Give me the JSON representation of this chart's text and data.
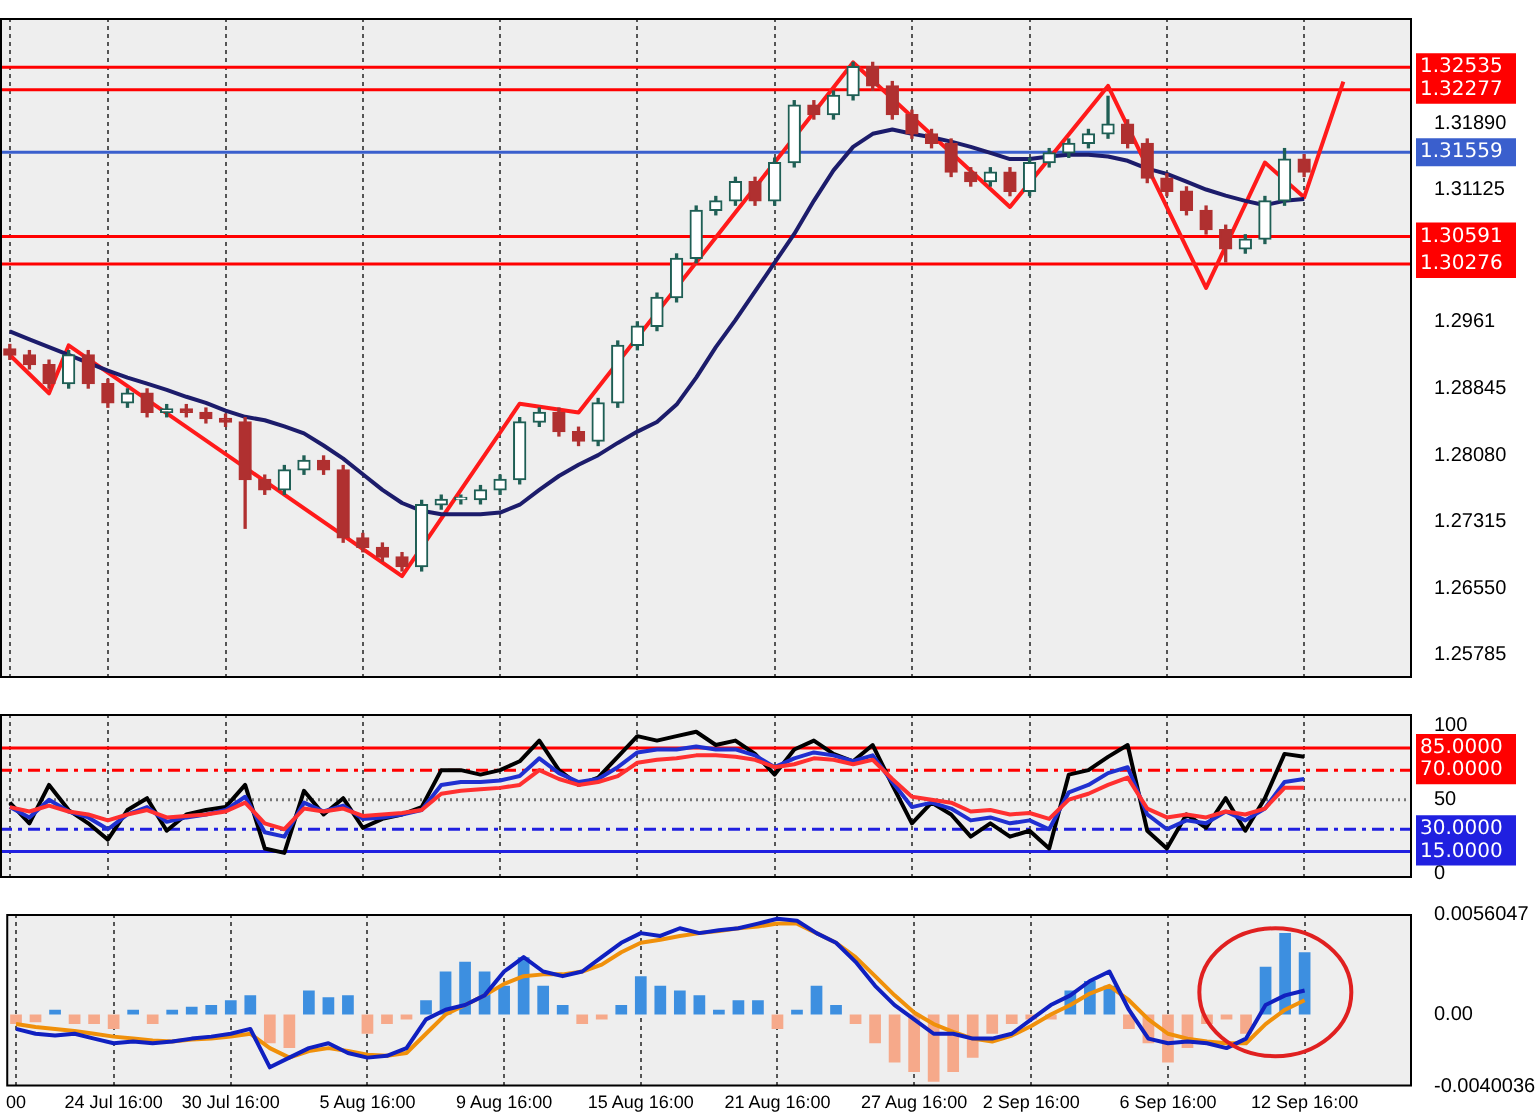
{
  "chart_data": [
    {
      "type": "candlestick",
      "categories": [
        null,
        null,
        null,
        null,
        null,
        null,
        null,
        null,
        null,
        null,
        null,
        null,
        null,
        null,
        null,
        null,
        null,
        null,
        null,
        null,
        null,
        null,
        null,
        null,
        null,
        null,
        null,
        null,
        null,
        null,
        null,
        null,
        null,
        null,
        null,
        null,
        null,
        null,
        null,
        null,
        null,
        null,
        null,
        null,
        null,
        null,
        null,
        null,
        null,
        null,
        null,
        null,
        null,
        null,
        null,
        null,
        null,
        null,
        null,
        null,
        null,
        null,
        null,
        null,
        null,
        null,
        null,
        null,
        null,
        null,
        null,
        null
      ],
      "colors": [
        "#b03030",
        "#b03030",
        "#b03030",
        "#1f5f55",
        "#b03030",
        "#b03030",
        "#1f5f55",
        "#b03030",
        "#1f5f55",
        "#b03030",
        "#b03030",
        "#b03030",
        "#b03030",
        "#b03030",
        "#1f5f55",
        "#1f5f55",
        "#b03030",
        "#b03030",
        "#b03030",
        "#b03030",
        "#b03030",
        "#1f5f55",
        "#1f5f55",
        "#1f5f55",
        "#1f5f55",
        "#1f5f55",
        "#1f5f55",
        "#1f5f55",
        "#b03030",
        "#b03030",
        "#1f5f55",
        "#1f5f55",
        "#1f5f55",
        "#1f5f55",
        "#1f5f55",
        "#1f5f55",
        "#1f5f55",
        "#1f5f55",
        "#b03030",
        "#1f5f55",
        "#1f5f55",
        "#b03030",
        "#1f5f55",
        "#1f5f55",
        "#b03030",
        "#b03030",
        "#b03030",
        "#b03030",
        "#b03030",
        "#b03030",
        "#1f5f55",
        "#b03030",
        "#1f5f55",
        "#1f5f55",
        "#1f5f55",
        "#1f5f55",
        "#1f5f55",
        "#b03030",
        "#b03030",
        "#b03030",
        "#b03030",
        "#b03030",
        "#b03030",
        "#1f5f55",
        "#1f5f55",
        "#1f5f55",
        "#b03030",
        null,
        null,
        null,
        null,
        null
      ],
      "ohlc": [
        [
          1.293,
          1.2935,
          1.2918,
          1.2923
        ],
        [
          1.2923,
          1.2928,
          1.2907,
          1.2912
        ],
        [
          1.2912,
          1.2917,
          1.2885,
          1.289
        ],
        [
          1.289,
          1.2928,
          1.2885,
          1.2923
        ],
        [
          1.2923,
          1.2928,
          1.2885,
          1.289
        ],
        [
          1.289,
          1.2895,
          1.2863,
          1.2868
        ],
        [
          1.2868,
          1.2884,
          1.2863,
          1.2879
        ],
        [
          1.2879,
          1.2884,
          1.2852,
          1.2857
        ],
        [
          1.2857,
          1.2866,
          1.2852,
          1.2861
        ],
        [
          1.2861,
          1.2866,
          1.2852,
          1.2857
        ],
        [
          1.2857,
          1.2862,
          1.2845,
          1.285
        ],
        [
          1.285,
          1.2855,
          1.2841,
          1.2846
        ],
        [
          1.2846,
          1.2851,
          1.2724,
          1.278
        ],
        [
          1.278,
          1.2785,
          1.2763,
          1.2768
        ],
        [
          1.2768,
          1.2796,
          1.2763,
          1.2791
        ],
        [
          1.2791,
          1.2807,
          1.2786,
          1.2802
        ],
        [
          1.2802,
          1.2807,
          1.2786,
          1.2791
        ],
        [
          1.2791,
          1.2796,
          1.2708,
          1.2713
        ],
        [
          1.2713,
          1.2718,
          1.2697,
          1.2702
        ],
        [
          1.2702,
          1.2707,
          1.2686,
          1.2691
        ],
        [
          1.2691,
          1.2696,
          1.2675,
          1.268
        ],
        [
          1.268,
          1.2756,
          1.2675,
          1.2751
        ],
        [
          1.2751,
          1.2762,
          1.2746,
          1.2757
        ],
        [
          1.2757,
          1.2762,
          1.2752,
          1.2757
        ],
        [
          1.2757,
          1.2773,
          1.2752,
          1.2768
        ],
        [
          1.2768,
          1.2785,
          1.2763,
          1.278
        ],
        [
          1.278,
          1.2851,
          1.2775,
          1.2846
        ],
        [
          1.2846,
          1.2862,
          1.2841,
          1.2857
        ],
        [
          1.2857,
          1.2862,
          1.283,
          1.2835
        ],
        [
          1.2835,
          1.284,
          1.2819,
          1.2824
        ],
        [
          1.2824,
          1.2873,
          1.2819,
          1.2868
        ],
        [
          1.2868,
          1.2939,
          1.2863,
          1.2934
        ],
        [
          1.2934,
          1.2961,
          1.2929,
          1.2956
        ],
        [
          1.2956,
          1.2994,
          1.2951,
          1.2989
        ],
        [
          1.2989,
          1.3039,
          1.2984,
          1.3034
        ],
        [
          1.3034,
          1.3094,
          1.3029,
          1.3089
        ],
        [
          1.3089,
          1.3105,
          1.3084,
          1.31
        ],
        [
          1.31,
          1.3127,
          1.3095,
          1.3122
        ],
        [
          1.3122,
          1.3127,
          1.3095,
          1.31
        ],
        [
          1.31,
          1.3149,
          1.3095,
          1.3144
        ],
        [
          1.3144,
          1.3215,
          1.3139,
          1.321
        ],
        [
          1.321,
          1.3215,
          1.3194,
          1.3199
        ],
        [
          1.3199,
          1.3226,
          1.3194,
          1.3221
        ],
        [
          1.3221,
          1.3259,
          1.3216,
          1.3254
        ],
        [
          1.3254,
          1.3259,
          1.3227,
          1.3232
        ],
        [
          1.3232,
          1.3237,
          1.3194,
          1.3199
        ],
        [
          1.3199,
          1.3204,
          1.3172,
          1.3177
        ],
        [
          1.3177,
          1.3182,
          1.3161,
          1.3166
        ],
        [
          1.3166,
          1.3171,
          1.3128,
          1.3133
        ],
        [
          1.3133,
          1.3138,
          1.3117,
          1.3122
        ],
        [
          1.3122,
          1.3138,
          1.3117,
          1.3133
        ],
        [
          1.3133,
          1.3138,
          1.3106,
          1.3111
        ],
        [
          1.3111,
          1.3149,
          1.3106,
          1.3144
        ],
        [
          1.3144,
          1.316,
          1.3139,
          1.3155
        ],
        [
          1.3155,
          1.3171,
          1.315,
          1.3166
        ],
        [
          1.3166,
          1.3182,
          1.3161,
          1.3177
        ],
        [
          1.3177,
          1.322,
          1.3172,
          1.3188
        ],
        [
          1.3188,
          1.3193,
          1.3161,
          1.3166
        ],
        [
          1.3166,
          1.3171,
          1.3121,
          1.3126
        ],
        [
          1.3126,
          1.3131,
          1.3106,
          1.3111
        ],
        [
          1.3111,
          1.3116,
          1.3084,
          1.3089
        ],
        [
          1.3089,
          1.3094,
          1.3062,
          1.3067
        ],
        [
          1.3067,
          1.3072,
          1.303,
          1.3045
        ],
        [
          1.3045,
          1.3061,
          1.304,
          1.3056
        ],
        [
          1.3056,
          1.3105,
          1.3051,
          1.31
        ],
        [
          1.31,
          1.316,
          1.3095,
          1.3148
        ],
        [
          1.3148,
          1.3153,
          1.3128,
          1.3133
        ],
        null,
        null,
        null,
        null,
        null
      ],
      "series": [
        {
          "type": "line",
          "color": "#1c1c6b",
          "values": [
            1.295,
            1.2941,
            1.2932,
            1.2923,
            1.2914,
            1.2905,
            1.2897,
            1.289,
            1.2883,
            1.2875,
            1.2868,
            1.2859,
            1.2852,
            1.2848,
            1.2841,
            1.2833,
            1.2819,
            1.2804,
            1.2786,
            1.2768,
            1.2753,
            1.2744,
            1.274,
            1.274,
            1.274,
            1.2742,
            1.2751,
            1.2768,
            1.2784,
            1.2797,
            1.2808,
            1.2822,
            1.2835,
            1.2846,
            1.2866,
            1.2897,
            1.2932,
            1.2963,
            1.2996,
            1.3029,
            1.3062,
            1.31,
            1.3135,
            1.3162,
            1.3177,
            1.3182,
            1.3177,
            1.3173,
            1.3168,
            1.3162,
            1.3155,
            1.3148,
            1.3148,
            1.3151,
            1.3153,
            1.3153,
            1.3151,
            1.3146,
            1.3137,
            1.3131,
            1.3122,
            1.3113,
            1.3106,
            1.31,
            1.3095,
            1.31,
            1.3102,
            null,
            null,
            null,
            null,
            null
          ]
        },
        {
          "type": "line",
          "color": "#ff1a1a",
          "values": [
            1.2923,
            null,
            1.2879,
            1.2934,
            null,
            null,
            null,
            null,
            null,
            null,
            null,
            null,
            null,
            null,
            null,
            null,
            null,
            null,
            null,
            null,
            1.2669,
            null,
            null,
            null,
            null,
            null,
            1.2867,
            null,
            null,
            1.2857,
            null,
            null,
            null,
            null,
            null,
            null,
            null,
            null,
            null,
            null,
            null,
            null,
            null,
            1.3259,
            null,
            null,
            null,
            null,
            null,
            null,
            null,
            1.3093,
            null,
            null,
            null,
            null,
            1.3232,
            null,
            null,
            null,
            null,
            1.3,
            null,
            null,
            1.3144,
            null,
            1.3104,
            null,
            1.3237,
            null,
            null,
            null
          ]
        }
      ],
      "ylim": [
        1.2552,
        1.331
      ],
      "yticks": [
        {
          "value": 1.3189,
          "label": "1.31890"
        },
        1.31125,
        1.2961,
        1.28845,
        {
          "value": 1.2808,
          "label": "1.28080"
        },
        1.27315,
        {
          "value": 1.2655,
          "label": "1.26550"
        },
        1.25785
      ],
      "ref_lines": [
        {
          "axis": "y",
          "value": 1.32535,
          "label": "1.32535",
          "color": "#ff0000"
        },
        {
          "axis": "y",
          "value": 1.32277,
          "label": "1.32277",
          "color": "#ff0000"
        },
        {
          "axis": "y",
          "value": 1.31559,
          "label": "1.31559",
          "color": "#3a5fcd"
        },
        {
          "axis": "y",
          "value": 1.30591,
          "label": "1.30591",
          "color": "#ff0000"
        },
        {
          "axis": "y",
          "value": 1.30276,
          "label": "1.30276",
          "color": "#ff0000"
        }
      ],
      "grid": "x",
      "tick_labels": "y"
    },
    {
      "type": "line",
      "categories": [
        null,
        null,
        null,
        null,
        null,
        null,
        null,
        null,
        null,
        null,
        null,
        null,
        null,
        null,
        null,
        null,
        null,
        null,
        null,
        null,
        null,
        null,
        null,
        null,
        null,
        null,
        null,
        null,
        null,
        null,
        null,
        null,
        null,
        null,
        null,
        null,
        null,
        null,
        null,
        null,
        null,
        null,
        null,
        null,
        null,
        null,
        null,
        null,
        null,
        null,
        null,
        null,
        null,
        null,
        null,
        null,
        null,
        null,
        null,
        null,
        null,
        null,
        null,
        null,
        null,
        null,
        null,
        null,
        null,
        null,
        null,
        null
      ],
      "series": [
        {
          "color": "#ff3030",
          "values": [
            45,
            42,
            46,
            42,
            40,
            36,
            40,
            43,
            38,
            39,
            40,
            42,
            48,
            34,
            30,
            44,
            42,
            44,
            39,
            40,
            41,
            43,
            54,
            56,
            57,
            58,
            60,
            70,
            64,
            60,
            62,
            66,
            75,
            77,
            78,
            80,
            80,
            79,
            77,
            72,
            74,
            78,
            77,
            74,
            77,
            64,
            52,
            50,
            48,
            42,
            43,
            40,
            41,
            37,
            50,
            54,
            60,
            65,
            44,
            38,
            40,
            38,
            42,
            40,
            44,
            58,
            58,
            null,
            null,
            null,
            null,
            null
          ]
        },
        {
          "color": "#2030d0",
          "values": [
            45,
            38,
            50,
            42,
            38,
            30,
            40,
            45,
            35,
            38,
            40,
            43,
            52,
            28,
            25,
            48,
            42,
            46,
            37,
            38,
            40,
            43,
            60,
            62,
            62,
            63,
            66,
            78,
            68,
            62,
            64,
            72,
            82,
            84,
            84,
            86,
            84,
            84,
            80,
            72,
            78,
            82,
            80,
            76,
            80,
            62,
            45,
            48,
            44,
            36,
            38,
            34,
            36,
            30,
            55,
            60,
            68,
            72,
            40,
            30,
            36,
            34,
            42,
            36,
            44,
            62,
            64,
            null,
            null,
            null,
            null,
            null
          ]
        },
        {
          "color": "#000000",
          "values": [
            48,
            34,
            60,
            43,
            34,
            23,
            43,
            51,
            29,
            40,
            43,
            45,
            60,
            17,
            14,
            56,
            40,
            51,
            31,
            37,
            40,
            45,
            70,
            70,
            67,
            70,
            76,
            90,
            70,
            60,
            65,
            79,
            93,
            90,
            93,
            96,
            87,
            90,
            81,
            67,
            84,
            90,
            81,
            76,
            87,
            60,
            34,
            48,
            40,
            25,
            34,
            25,
            29,
            17,
            67,
            70,
            79,
            87,
            29,
            17,
            40,
            31,
            51,
            29,
            51,
            81,
            79,
            null,
            null,
            null,
            null,
            null
          ]
        }
      ],
      "ylim": [
        -3,
        108
      ],
      "yticks": [
        0,
        50,
        100
      ],
      "ref_lines": [
        {
          "axis": "y",
          "value": 85,
          "label": "85.0000",
          "color": "#ff0000",
          "line_style": "solid"
        },
        {
          "axis": "y",
          "value": 70,
          "label": "70.0000",
          "color": "#ff0000",
          "line_style": "dashed"
        },
        {
          "axis": "y",
          "value": 50,
          "label": null,
          "color": "#777777",
          "line_style": "dotted"
        },
        {
          "axis": "y",
          "value": 30,
          "label": "30.0000",
          "color": "#2020e0",
          "line_style": "dashed"
        },
        {
          "axis": "y",
          "value": 15,
          "label": "15.0000",
          "color": "#2020e0",
          "line_style": "solid"
        }
      ],
      "grid": "x",
      "tick_labels": "y"
    },
    {
      "type": "bar",
      "categories": [
        "00",
        null,
        null,
        null,
        null,
        "24 Jul 16:00",
        null,
        null,
        null,
        null,
        null,
        "30 Jul 16:00",
        null,
        null,
        null,
        null,
        null,
        null,
        "5 Aug 16:00",
        null,
        null,
        null,
        null,
        null,
        null,
        "9 Aug 16:00",
        null,
        null,
        null,
        null,
        null,
        null,
        "15 Aug 16:00",
        null,
        null,
        null,
        null,
        null,
        null,
        "21 Aug 16:00",
        null,
        null,
        null,
        null,
        null,
        null,
        "27 Aug 16:00",
        null,
        null,
        null,
        null,
        null,
        "2 Sep 16:00",
        null,
        null,
        null,
        null,
        null,
        null,
        "6 Sep 16:00",
        null,
        null,
        null,
        null,
        null,
        null,
        "12 Sep 16:00",
        null,
        null,
        null,
        null,
        null
      ],
      "series": [
        {
          "type": "bar",
          "values": [
            -0.00053,
            -0.00043,
            0.00027,
            -0.00053,
            -0.00053,
            -0.0008,
            0.00027,
            -0.00053,
            0.00027,
            0.00043,
            0.00053,
            0.0008,
            0.00107,
            -0.0016,
            -0.00187,
            0.00134,
            0.00096,
            0.00107,
            -0.00107,
            -0.00053,
            -0.00027,
            0.0008,
            0.0024,
            0.00294,
            0.0024,
            0.0016,
            0.0032,
            0.0016,
            0.00053,
            -0.00053,
            -0.00027,
            0.00053,
            0.00214,
            0.0016,
            0.00134,
            0.00107,
            0.00027,
            0.0008,
            0.0008,
            -0.0008,
            0.00027,
            0.0016,
            0.00053,
            -0.00053,
            -0.0016,
            -0.00267,
            -0.0032,
            -0.00374,
            -0.0032,
            -0.0024,
            -0.00107,
            -0.00053,
            -0.00027,
            -0.00027,
            0.00134,
            0.00187,
            0.0016,
            -0.0008,
            -0.0016,
            -0.00267,
            -0.00187,
            -0.00053,
            -0.00027,
            -0.00107,
            0.00267,
            0.00454,
            0.00347,
            null,
            null,
            null,
            null,
            null
          ],
          "colors": [
            "#f6a98a",
            "#f6a98a",
            "#3d8fe0",
            "#f6a98a",
            "#f6a98a",
            "#f6a98a",
            "#3d8fe0",
            "#f6a98a",
            "#3d8fe0",
            "#3d8fe0",
            "#3d8fe0",
            "#3d8fe0",
            "#3d8fe0",
            "#f6a98a",
            "#f6a98a",
            "#3d8fe0",
            "#3d8fe0",
            "#3d8fe0",
            "#f6a98a",
            "#f6a98a",
            "#f6a98a",
            "#3d8fe0",
            "#3d8fe0",
            "#3d8fe0",
            "#3d8fe0",
            "#3d8fe0",
            "#3d8fe0",
            "#3d8fe0",
            "#3d8fe0",
            "#f6a98a",
            "#f6a98a",
            "#3d8fe0",
            "#3d8fe0",
            "#3d8fe0",
            "#3d8fe0",
            "#3d8fe0",
            "#3d8fe0",
            "#3d8fe0",
            "#3d8fe0",
            "#f6a98a",
            "#3d8fe0",
            "#3d8fe0",
            "#3d8fe0",
            "#f6a98a",
            "#f6a98a",
            "#f6a98a",
            "#f6a98a",
            "#f6a98a",
            "#f6a98a",
            "#f6a98a",
            "#f6a98a",
            "#f6a98a",
            "#f6a98a",
            "#f6a98a",
            "#3d8fe0",
            "#3d8fe0",
            "#3d8fe0",
            "#f6a98a",
            "#f6a98a",
            "#f6a98a",
            "#f6a98a",
            "#f6a98a",
            "#f6a98a",
            "#f6a98a",
            "#3d8fe0",
            "#3d8fe0",
            "#3d8fe0",
            null,
            null,
            null,
            null,
            null
          ]
        },
        {
          "type": "line",
          "color": "#1020c0",
          "values": [
            -0.0008,
            -0.00107,
            -0.00117,
            -0.00107,
            -0.00134,
            -0.0016,
            -0.0015,
            -0.0016,
            -0.0015,
            -0.00134,
            -0.00123,
            -0.00107,
            -0.0008,
            -0.00294,
            -0.0024,
            -0.00187,
            -0.0016,
            -0.00214,
            -0.0024,
            -0.0023,
            -0.00187,
            -0.00027,
            0.00027,
            0.00053,
            0.00107,
            0.0024,
            0.0032,
            0.0024,
            0.00214,
            0.0024,
            0.0032,
            0.004,
            0.00454,
            0.00438,
            0.00481,
            0.00454,
            0.0047,
            0.00481,
            0.00507,
            0.00534,
            0.00523,
            0.00454,
            0.004,
            0.00294,
            0.0016,
            0.00053,
            -0.00027,
            -0.00107,
            -0.00107,
            -0.00134,
            -0.00134,
            -0.00107,
            -0.00027,
            0.00053,
            0.00107,
            0.00187,
            0.0024,
            0.00027,
            -0.00134,
            -0.0016,
            -0.0015,
            -0.0016,
            -0.00187,
            -0.00134,
            0.00053,
            0.00107,
            0.00134,
            null,
            null,
            null,
            null,
            null
          ]
        },
        {
          "type": "line",
          "color": "#f0900a",
          "values": [
            -0.00053,
            -0.00069,
            -0.0008,
            -0.00091,
            -0.00107,
            -0.00123,
            -0.00134,
            -0.00144,
            -0.0015,
            -0.00139,
            -0.00134,
            -0.00123,
            -0.00107,
            -0.00187,
            -0.0024,
            -0.00203,
            -0.00187,
            -0.00203,
            -0.00224,
            -0.0023,
            -0.00214,
            -0.00107,
            0,
            0.00053,
            0.00107,
            0.00171,
            0.00214,
            0.00224,
            0.00224,
            0.0024,
            0.00278,
            0.00347,
            0.004,
            0.00417,
            0.00438,
            0.00454,
            0.00465,
            0.00481,
            0.00491,
            0.00507,
            0.00507,
            0.00454,
            0.004,
            0.0032,
            0.00214,
            0.00107,
            0.00011,
            -0.00053,
            -0.00096,
            -0.00134,
            -0.0015,
            -0.00117,
            -0.00064,
            0,
            0.00053,
            0.00117,
            0.0016,
            0.0008,
            -0.00027,
            -0.00107,
            -0.00134,
            -0.0015,
            -0.0016,
            -0.0016,
            -0.00053,
            0.00027,
            0.0008,
            null,
            null,
            null,
            null,
            null
          ]
        }
      ],
      "ylim": [
        -0.0040036,
        0.0056047
      ],
      "yticks": [
        -0.0040036,
        {
          "value": 0,
          "label": "0.00"
        },
        0.0056047
      ],
      "grid": "x"
    }
  ]
}
